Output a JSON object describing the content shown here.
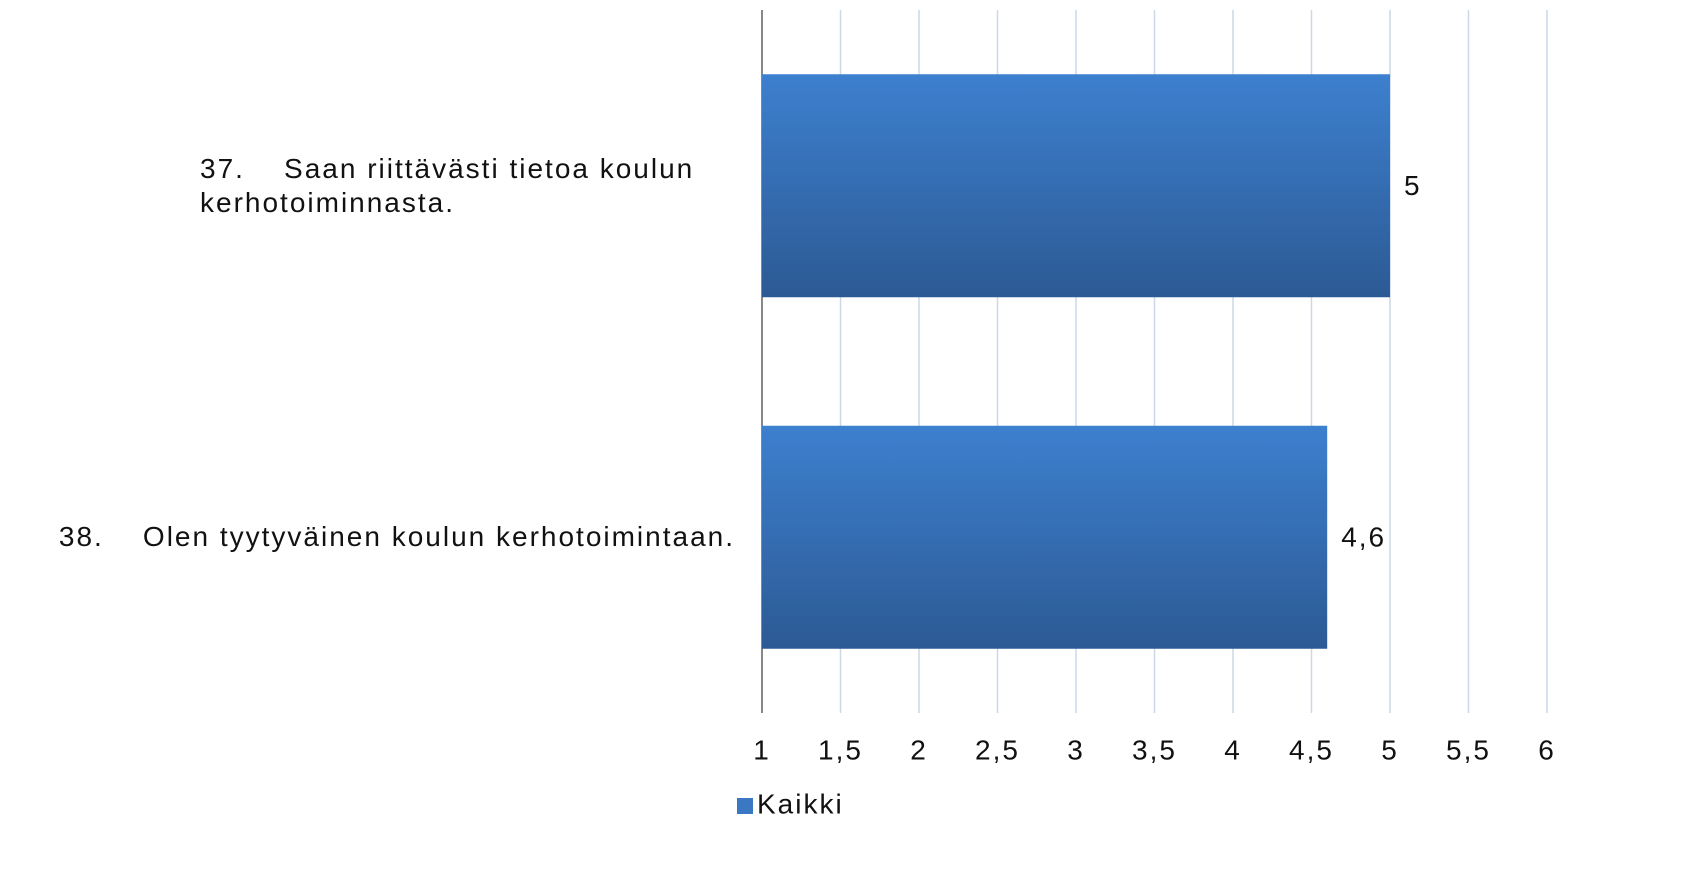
{
  "chart_data": {
    "type": "bar",
    "orientation": "horizontal",
    "categories": [
      "37.    Saan riittävästi tietoa koulun kerhotoiminnasta.",
      "38.    Olen tyytyväinen koulun kerhotoimintaan."
    ],
    "series": [
      {
        "name": "Kaikki",
        "color": "#3a78c4",
        "values": [
          5,
          4.6
        ],
        "value_labels": [
          "5",
          "4,6"
        ]
      }
    ],
    "xlim": [
      1,
      6
    ],
    "xticks": [
      1,
      {
        "value": 1.5,
        "label": "1,5"
      },
      2,
      {
        "value": 2.5,
        "label": "2,5"
      },
      3,
      {
        "value": 3.5,
        "label": "3,5"
      },
      4,
      {
        "value": 4.5,
        "label": "4,5"
      },
      5,
      {
        "value": 5.5,
        "label": "5,5"
      },
      6
    ],
    "grid": true,
    "legend": "bottom"
  }
}
